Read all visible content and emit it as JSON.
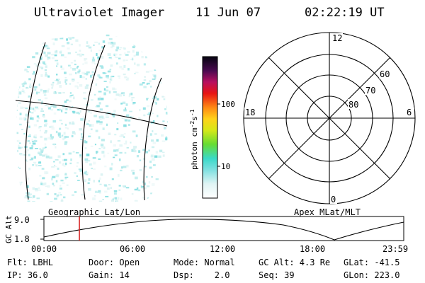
{
  "header": {
    "instrument": "Ultraviolet Imager",
    "date": "11 Jun 07",
    "time": "02:22:19 UT"
  },
  "colorbar": {
    "unit_label": "photon cm",
    "unit_exp1": "-2",
    "unit_s": "s",
    "unit_exp2": "-1",
    "tick_100": "100",
    "tick_10": "10"
  },
  "polar_plot": {
    "mlt_labels": {
      "top": "12",
      "bottom": "0",
      "left": "18",
      "right": "6"
    },
    "lat_labels": [
      "60",
      "70",
      "80"
    ]
  },
  "altitude_panel": {
    "axis_label": "GC Alt",
    "tick_high": "9.0",
    "tick_low": "1.8",
    "left_title": "Geographic Lat/Lon",
    "right_title": "Apex MLat/MLT",
    "time_ticks": [
      "00:00",
      "06:00",
      "12:00",
      "18:00",
      "23:59"
    ],
    "marker_time": "02:22"
  },
  "info": {
    "row1": {
      "flt": "Flt: LBHL",
      "door": "Door: Open",
      "mode": "Mode: Normal",
      "gcalt": "GC Alt: 4.3 Re",
      "glat": "GLat: -41.5"
    },
    "row2": {
      "ip": "IP: 36.0",
      "gain": "Gain: 14",
      "dsp": "Dsp:    2.0",
      "seq": "Seq: 39",
      "glon": "GLon: 223.0"
    }
  },
  "colors": {
    "emission": "#7fdde0",
    "marker": "#d62020",
    "colorbar_stops": [
      "#ffffff",
      "#7ee0e0",
      "#3ad9c8",
      "#66dd33",
      "#d6e818",
      "#ffd21a",
      "#ff8a14",
      "#e81414",
      "#a8106a",
      "#2c0a4a",
      "#000000"
    ]
  }
}
